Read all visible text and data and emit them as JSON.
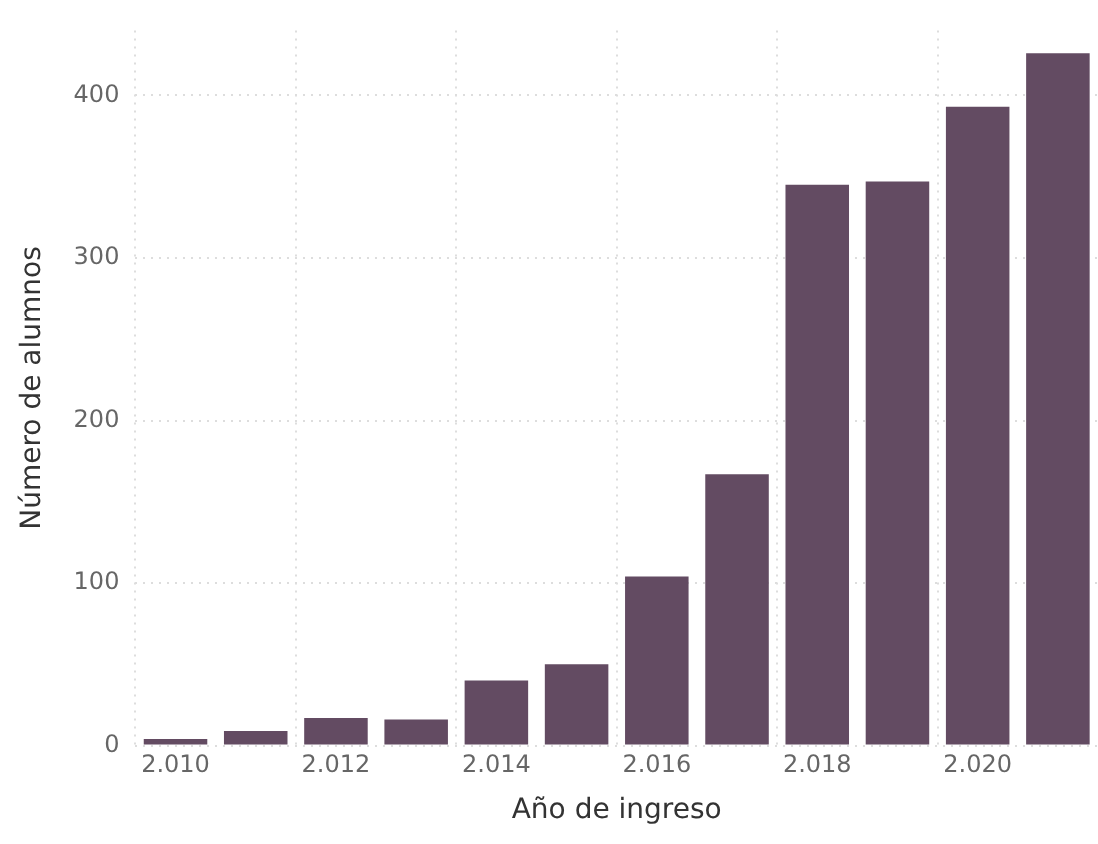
{
  "chart_data": {
    "type": "bar",
    "xlabel": "Año de ingreso",
    "ylabel": "Número de alumnos",
    "categories": [
      "2.010",
      null,
      "2.012",
      null,
      "2.014",
      null,
      "2.016",
      null,
      "2.018",
      null,
      "2.020",
      null
    ],
    "values": [
      4,
      9,
      17,
      16,
      40,
      50,
      104,
      167,
      345,
      347,
      393,
      426
    ],
    "color": "#634b62",
    "ylim": [
      0,
      440
    ],
    "yticks": [
      0,
      100,
      200,
      300,
      400
    ],
    "grid": true,
    "legend": false
  }
}
